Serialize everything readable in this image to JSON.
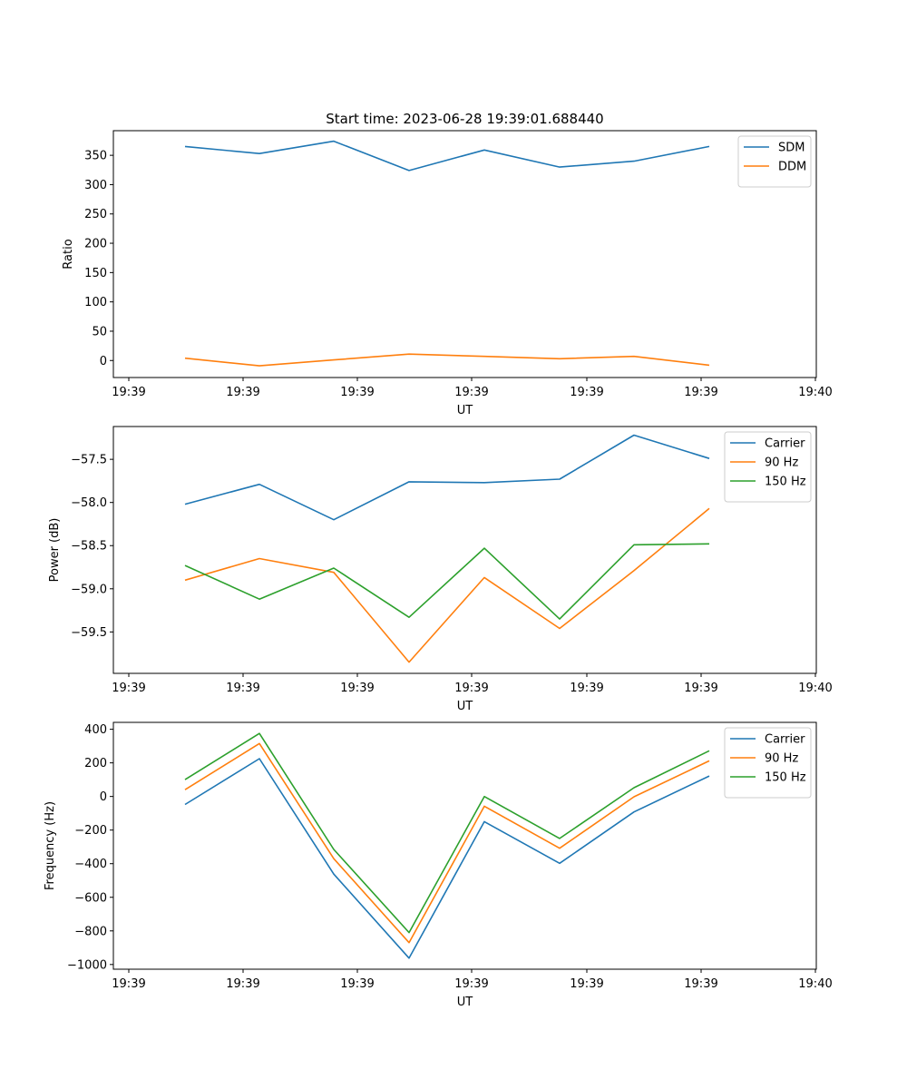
{
  "figure": {
    "title": "Start time: 2023-06-28 19:39:01.688440"
  },
  "chart_data": [
    {
      "type": "line",
      "title": "Start time: 2023-06-28 19:39:01.688440",
      "xlabel": "UT",
      "ylabel": "Ratio",
      "x_tick_labels": [
        "19:39",
        "19:39",
        "19:39",
        "19:39",
        "19:39",
        "19:39",
        "19:39",
        "19:40"
      ],
      "y_ticks": [
        0,
        50,
        100,
        150,
        200,
        250,
        300,
        350
      ],
      "ylim": [
        -29,
        392
      ],
      "grid": false,
      "legend_position": "top-right",
      "series": [
        {
          "name": "SDM",
          "color": "#1f77b4",
          "values": [
            365,
            353,
            374,
            324,
            359,
            330,
            340,
            365
          ]
        },
        {
          "name": "DDM",
          "color": "#ff7f0e",
          "values": [
            4,
            -9,
            1,
            11,
            7,
            3,
            7,
            -8
          ]
        }
      ]
    },
    {
      "type": "line",
      "xlabel": "UT",
      "ylabel": "Power (dB)",
      "x_tick_labels": [
        "19:39",
        "19:39",
        "19:39",
        "19:39",
        "19:39",
        "19:39",
        "19:39",
        "19:40"
      ],
      "y_ticks": [
        -59.5,
        -59.0,
        -58.5,
        -58.0,
        -57.5
      ],
      "y_tick_labels": [
        "−59.5",
        "−59.0",
        "−58.5",
        "−58.0",
        "−57.5"
      ],
      "ylim": [
        -59.98,
        -57.12
      ],
      "grid": false,
      "legend_position": "top-right",
      "series": [
        {
          "name": "Carrier",
          "color": "#1f77b4",
          "values": [
            -58.02,
            -57.79,
            -58.2,
            -57.76,
            -57.77,
            -57.73,
            -57.22,
            -57.49
          ]
        },
        {
          "name": "90 Hz",
          "color": "#ff7f0e",
          "values": [
            -58.9,
            -58.65,
            -58.81,
            -59.85,
            -58.87,
            -59.46,
            -58.79,
            -58.07
          ]
        },
        {
          "name": "150 Hz",
          "color": "#2ca02c",
          "values": [
            -58.73,
            -59.12,
            -58.76,
            -59.33,
            -58.53,
            -59.35,
            -58.49,
            -58.48
          ]
        }
      ]
    },
    {
      "type": "line",
      "xlabel": "UT",
      "ylabel": "Frequency (Hz)",
      "x_tick_labels": [
        "19:39",
        "19:39",
        "19:39",
        "19:39",
        "19:39",
        "19:39",
        "19:39",
        "19:40"
      ],
      "y_ticks": [
        -1000,
        -800,
        -600,
        -400,
        -200,
        0,
        200,
        400
      ],
      "y_tick_labels": [
        "−1000",
        "−800",
        "−600",
        "−400",
        "−200",
        "0",
        "200",
        "400"
      ],
      "ylim": [
        -1028,
        441
      ],
      "grid": false,
      "legend_position": "top-right",
      "series": [
        {
          "name": "Carrier",
          "color": "#1f77b4",
          "values": [
            -48,
            225,
            -462,
            -962,
            -150,
            -398,
            -92,
            122
          ]
        },
        {
          "name": "90 Hz",
          "color": "#ff7f0e",
          "values": [
            40,
            315,
            -370,
            -870,
            -58,
            -308,
            -2,
            212
          ]
        },
        {
          "name": "150 Hz",
          "color": "#2ca02c",
          "values": [
            100,
            375,
            -315,
            -810,
            0,
            -250,
            52,
            272
          ]
        }
      ]
    }
  ]
}
